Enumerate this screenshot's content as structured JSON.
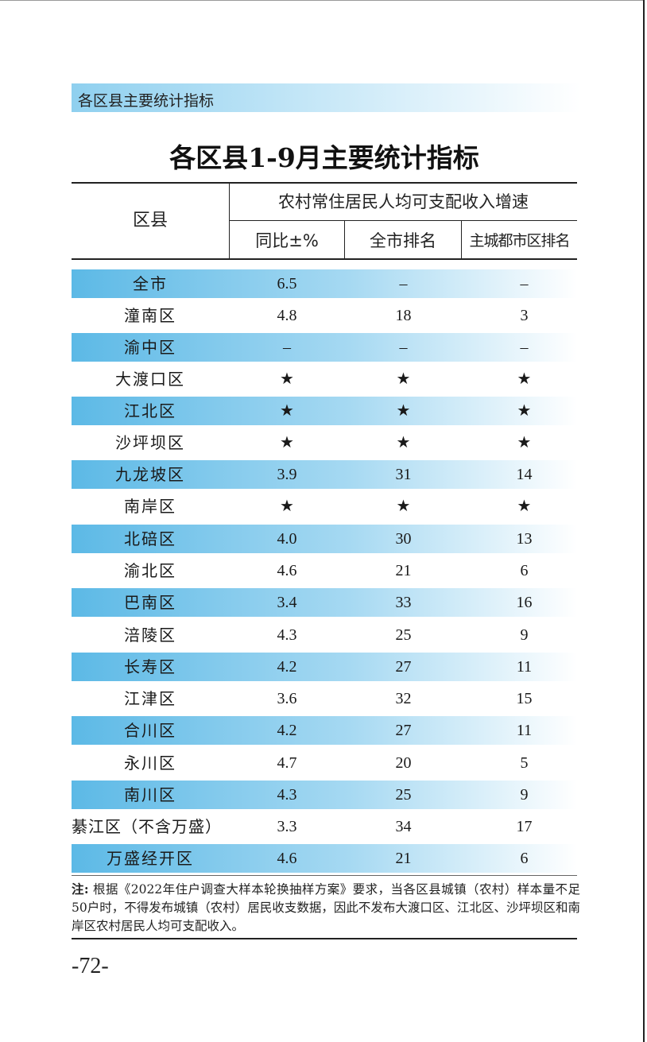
{
  "section_title": "各区县主要统计指标",
  "table_title": "各区县1-9月主要统计指标",
  "header": {
    "region": "区县",
    "group": "农村常住居民人均可支配收入增速",
    "yoy": "同比±%",
    "city_rank": "全市排名",
    "main_rank": "主城都市区排名"
  },
  "rows": [
    {
      "name": "全市",
      "yoy": "6.5",
      "city_rank": "–",
      "main_rank": "–"
    },
    {
      "name": "潼南区",
      "yoy": "4.8",
      "city_rank": "18",
      "main_rank": "3"
    },
    {
      "name": "渝中区",
      "yoy": "–",
      "city_rank": "–",
      "main_rank": "–"
    },
    {
      "name": "大渡口区",
      "yoy": "★",
      "city_rank": "★",
      "main_rank": "★"
    },
    {
      "name": "江北区",
      "yoy": "★",
      "city_rank": "★",
      "main_rank": "★"
    },
    {
      "name": "沙坪坝区",
      "yoy": "★",
      "city_rank": "★",
      "main_rank": "★"
    },
    {
      "name": "九龙坡区",
      "yoy": "3.9",
      "city_rank": "31",
      "main_rank": "14"
    },
    {
      "name": "南岸区",
      "yoy": "★",
      "city_rank": "★",
      "main_rank": "★"
    },
    {
      "name": "北碚区",
      "yoy": "4.0",
      "city_rank": "30",
      "main_rank": "13"
    },
    {
      "name": "渝北区",
      "yoy": "4.6",
      "city_rank": "21",
      "main_rank": "6"
    },
    {
      "name": "巴南区",
      "yoy": "3.4",
      "city_rank": "33",
      "main_rank": "16"
    },
    {
      "name": "涪陵区",
      "yoy": "4.3",
      "city_rank": "25",
      "main_rank": "9"
    },
    {
      "name": "长寿区",
      "yoy": "4.2",
      "city_rank": "27",
      "main_rank": "11"
    },
    {
      "name": "江津区",
      "yoy": "3.6",
      "city_rank": "32",
      "main_rank": "15"
    },
    {
      "name": "合川区",
      "yoy": "4.2",
      "city_rank": "27",
      "main_rank": "11"
    },
    {
      "name": "永川区",
      "yoy": "4.7",
      "city_rank": "20",
      "main_rank": "5"
    },
    {
      "name": "南川区",
      "yoy": "4.3",
      "city_rank": "25",
      "main_rank": "9"
    },
    {
      "name": "綦江区（不含万盛）",
      "yoy": "3.3",
      "city_rank": "34",
      "main_rank": "17"
    },
    {
      "name": "万盛经开区",
      "yoy": "4.6",
      "city_rank": "21",
      "main_rank": "6"
    }
  ],
  "note": {
    "label": "注:",
    "text": "根据《2022年住户调查大样本轮换抽样方案》要求，当各区县城镇（农村）样本量不足50户时，不得发布城镇（农村）居民收支数据，因此不发布大渡口区、江北区、沙坪坝区和南岸区农村居民人均可支配收入。"
  },
  "page_number": "-72-"
}
